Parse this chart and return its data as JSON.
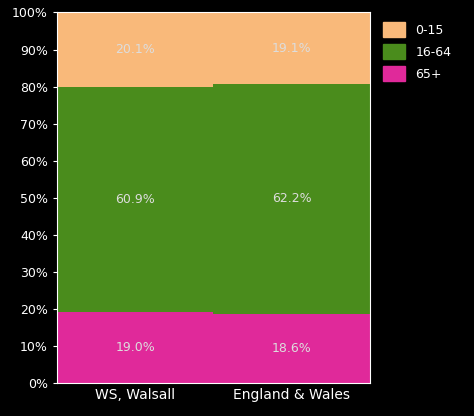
{
  "categories": [
    "WS, Walsall",
    "England & Wales"
  ],
  "segments": {
    "65+": [
      19.0,
      18.6
    ],
    "16-64": [
      60.9,
      62.2
    ],
    "0-15": [
      20.1,
      19.1
    ]
  },
  "colors": {
    "65+": "#e0299a",
    "16-64": "#4a8c1c",
    "0-15": "#f9b97a"
  },
  "labels": {
    "WS, Walsall": {
      "65+": "19.0%",
      "16-64": "60.9%",
      "0-15": "20.1%"
    },
    "England & Wales": {
      "65+": "18.6%",
      "16-64": "62.2%",
      "0-15": "19.1%"
    }
  },
  "background_color": "#000000",
  "bar_edge_color": "#000000",
  "text_color": "#dddddd",
  "ytick_labels": [
    "0%",
    "10%",
    "20%",
    "30%",
    "40%",
    "50%",
    "60%",
    "70%",
    "80%",
    "90%",
    "100%"
  ],
  "ytick_values": [
    0,
    10,
    20,
    30,
    40,
    50,
    60,
    70,
    80,
    90,
    100
  ],
  "legend_labels": [
    "0-15",
    "16-64",
    "65+"
  ],
  "legend_colors": [
    "#f9b97a",
    "#4a8c1c",
    "#e0299a"
  ]
}
